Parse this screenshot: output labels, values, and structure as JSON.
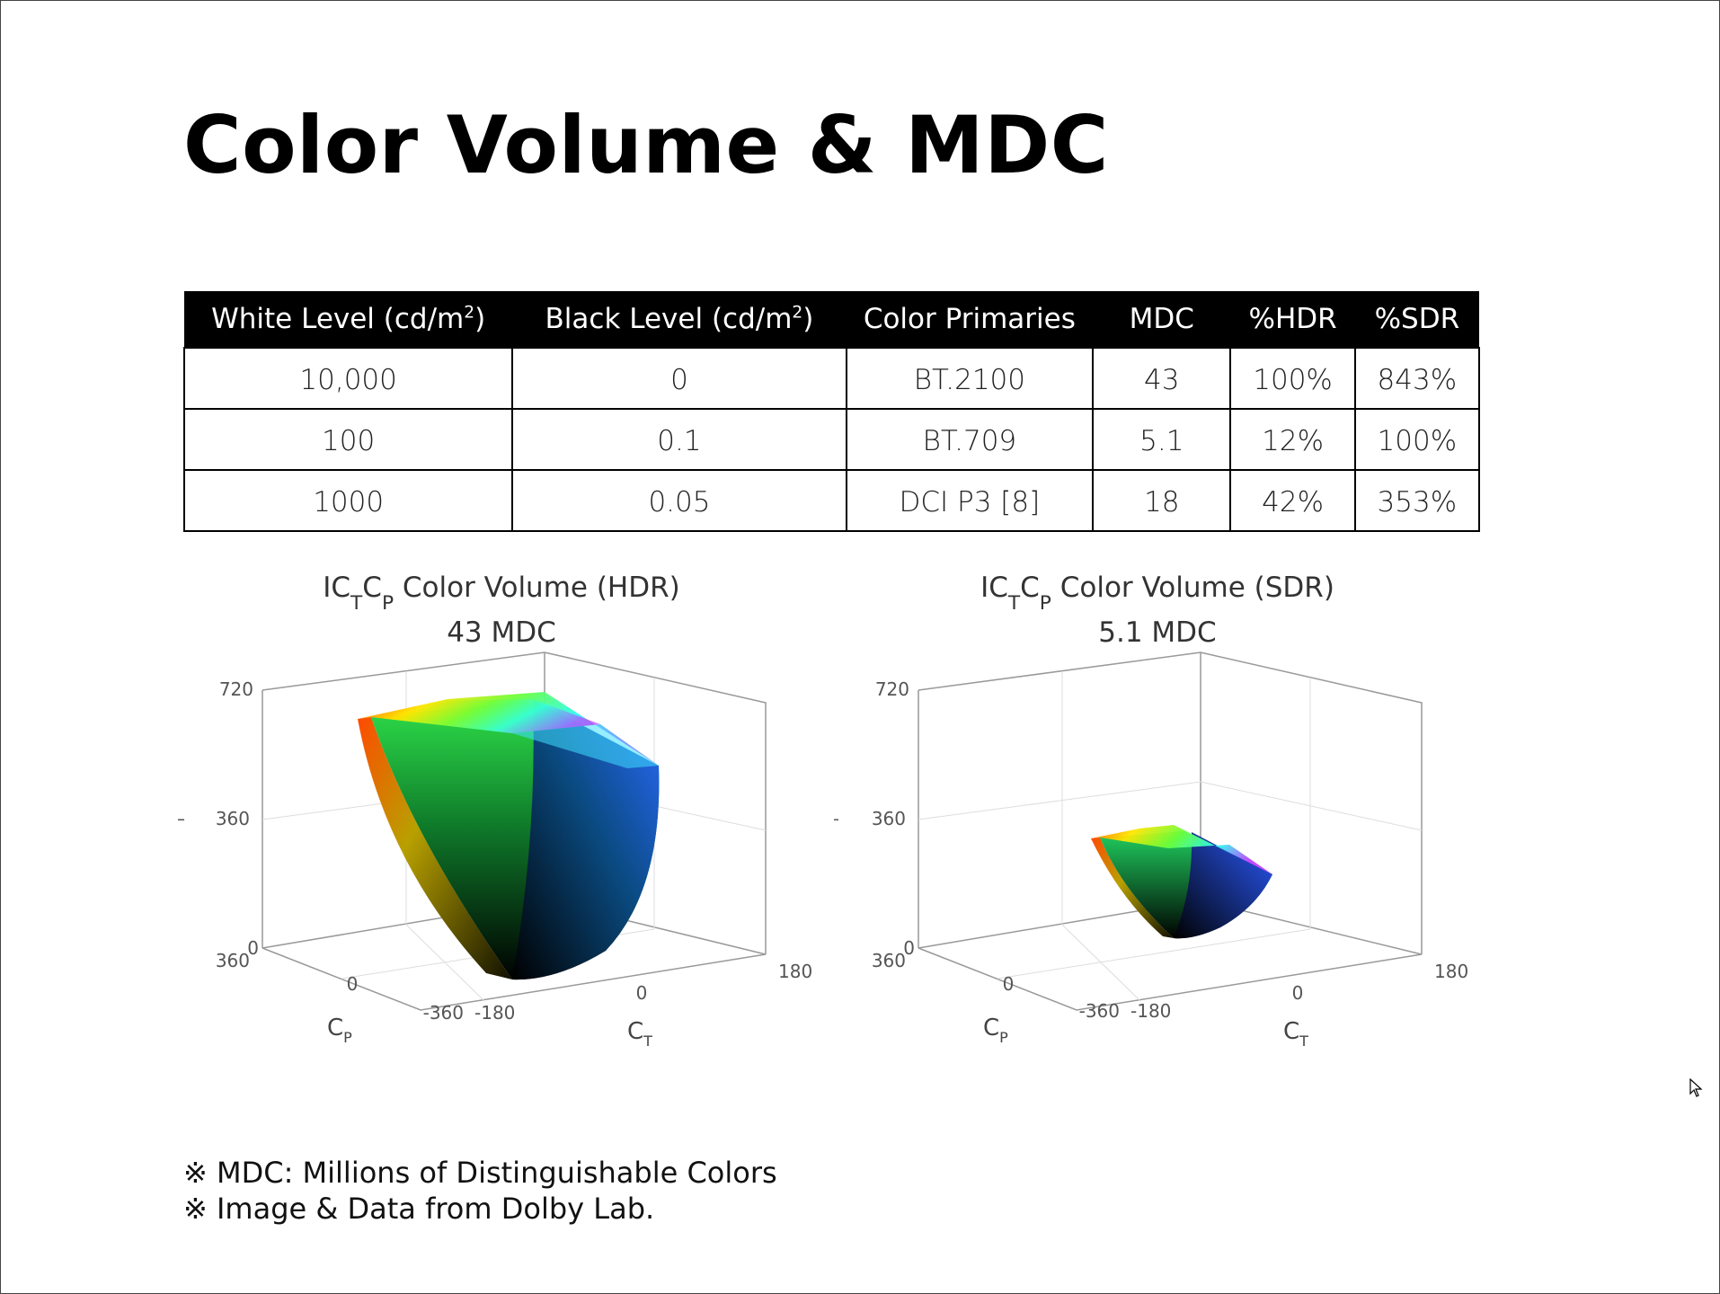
{
  "title": "Color Volume & MDC",
  "table": {
    "headers": {
      "white": "White Level (cd/m",
      "black": "Black Level (cd/m",
      "sup": "2",
      "close": ")",
      "primaries": "Color Primaries",
      "mdc": "MDC",
      "hdr": "%HDR",
      "sdr": "%SDR"
    },
    "rows": [
      [
        "10,000",
        "0",
        "BT.2100",
        "43",
        "100%",
        "843%"
      ],
      [
        "100",
        "0.1",
        "BT.709",
        "5.1",
        "12%",
        "100%"
      ],
      [
        "1000",
        "0.05",
        "DCI P3 [8]",
        "18",
        "42%",
        "353%"
      ]
    ]
  },
  "plots": [
    {
      "title_i": "IC",
      "title_t": "T",
      "title_c": "C",
      "title_p": "P",
      "title_rest": " Color Volume (HDR)",
      "subtitle": "43 MDC",
      "z_ticks": [
        "720",
        "360",
        "0"
      ],
      "cp_ticks": [
        "360",
        "0",
        "-360"
      ],
      "ct_ticks": [
        "-180",
        "0",
        "180"
      ],
      "cp_label": "C",
      "cp_sub": "P",
      "ct_label": "C",
      "ct_sub": "T"
    },
    {
      "title_i": "IC",
      "title_t": "T",
      "title_c": "C",
      "title_p": "P",
      "title_rest": " Color Volume (SDR)",
      "subtitle": "5.1 MDC",
      "z_ticks": [
        "720",
        "360",
        "0"
      ],
      "cp_ticks": [
        "360",
        "0",
        "-360"
      ],
      "ct_ticks": [
        "-180",
        "0",
        "180"
      ],
      "cp_label": "C",
      "cp_sub": "P",
      "ct_label": "C",
      "ct_sub": "T"
    }
  ],
  "notes": [
    "※ MDC: Millions of Distinguishable Colors",
    "※ Image & Data from Dolby Lab."
  ]
}
